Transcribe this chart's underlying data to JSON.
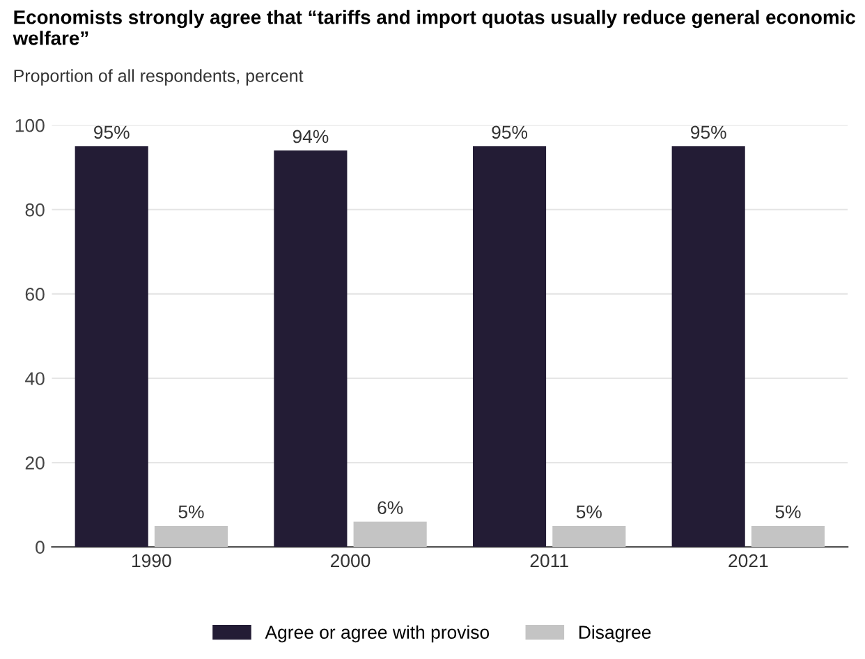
{
  "chart_data": {
    "type": "bar",
    "title": "Economists strongly agree that “tariffs and import quotas usually reduce general economic welfare”",
    "subtitle": "Proportion of all respondents, percent",
    "categories": [
      "1990",
      "2000",
      "2011",
      "2021"
    ],
    "series": [
      {
        "name": "Agree or agree with proviso",
        "color": "#231c35",
        "values": [
          95,
          94,
          95,
          95
        ],
        "value_labels": [
          "95%",
          "94%",
          "95%",
          "95%"
        ]
      },
      {
        "name": "Disagree",
        "color": "#c4c4c4",
        "values": [
          5,
          6,
          5,
          5
        ],
        "value_labels": [
          "5%",
          "6%",
          "5%",
          "5%"
        ]
      }
    ],
    "ylim": [
      0,
      100
    ],
    "yticks": [
      0,
      20,
      40,
      60,
      80,
      100
    ],
    "grid": "y",
    "legend": "bottom"
  }
}
